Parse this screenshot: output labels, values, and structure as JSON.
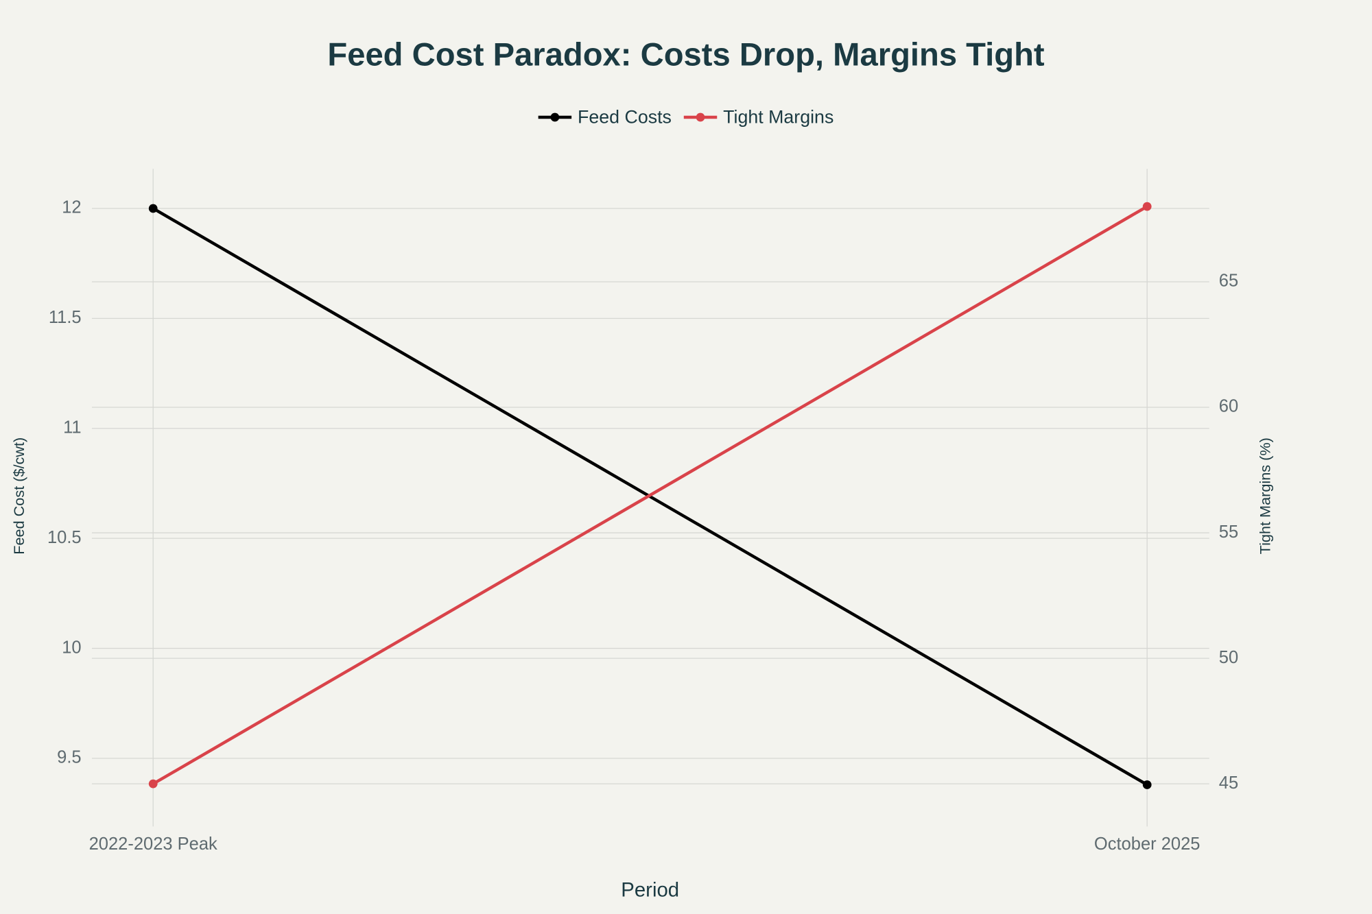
{
  "chart_data": {
    "type": "line",
    "title": "Feed Cost Paradox: Costs Drop, Margins Tight",
    "x_label": "Period",
    "y_label": "Feed Cost ($/cwt)",
    "y2_label": "Tight Margins (%)",
    "categories": [
      "2022-2023 Peak",
      "October 2025"
    ],
    "series": [
      {
        "name": "Feed Costs",
        "color": "#000000",
        "values": [
          12,
          9.38
        ]
      },
      {
        "name": "Tight Margins",
        "color": "#d9434a",
        "values": [
          45,
          68
        ],
        "axis": "y2"
      }
    ],
    "ylim": [
      9.19,
      12.18
    ],
    "yticks": [
      9.5,
      10,
      10.5,
      11,
      11.5,
      12
    ],
    "y2lim": [
      43.3,
      69.5
    ],
    "y2ticks": [
      45,
      50,
      55,
      60,
      65
    ],
    "grid": true,
    "legend": "top"
  }
}
